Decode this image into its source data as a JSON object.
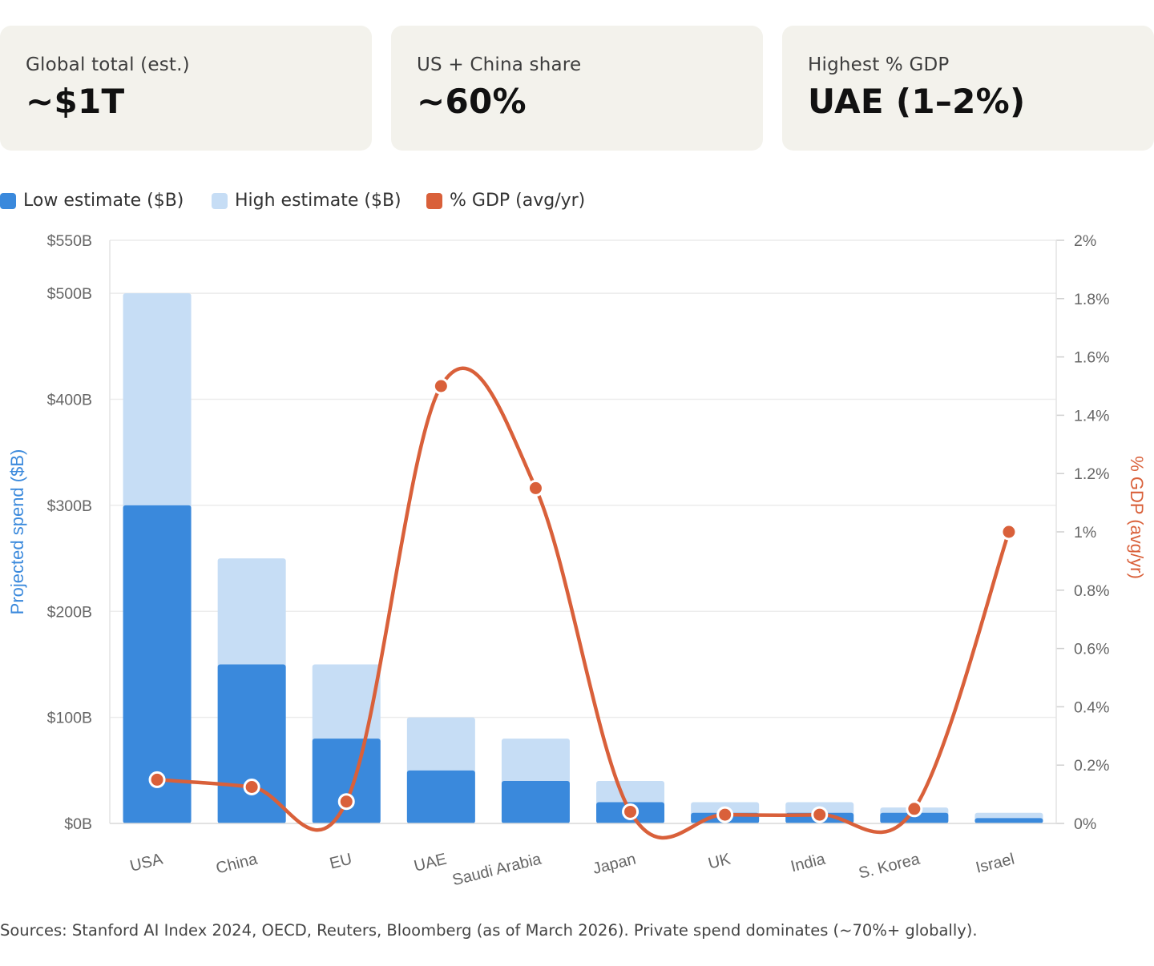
{
  "stats": [
    {
      "label": "Global total (est.)",
      "value": "~$1T"
    },
    {
      "label": "US + China share",
      "value": "~60%"
    },
    {
      "label": "Highest % GDP",
      "value": "UAE (1–2%)"
    }
  ],
  "legend": [
    {
      "label": "Low estimate ($B)",
      "color": "#3a89dc"
    },
    {
      "label": "High estimate ($B)",
      "color": "#c6ddf5"
    },
    {
      "label": "% GDP (avg/yr)",
      "color": "#d9603a"
    }
  ],
  "chart_data": {
    "type": "bar",
    "categories": [
      "USA",
      "China",
      "EU",
      "UAE",
      "Saudi Arabia",
      "Japan",
      "UK",
      "India",
      "S. Korea",
      "Israel"
    ],
    "series": [
      {
        "name": "Low estimate ($B)",
        "type": "bar",
        "axis": "left",
        "color": "#3a89dc",
        "values": [
          300,
          150,
          80,
          50,
          40,
          20,
          10,
          10,
          10,
          5
        ]
      },
      {
        "name": "High estimate ($B)",
        "type": "bar",
        "axis": "left",
        "color": "#c6ddf5",
        "values": [
          500,
          250,
          150,
          100,
          80,
          40,
          20,
          20,
          15,
          10
        ]
      },
      {
        "name": "% GDP (avg/yr)",
        "type": "line",
        "axis": "right",
        "color": "#d9603a",
        "values": [
          0.15,
          0.125,
          0.075,
          1.5,
          1.15,
          0.04,
          0.03,
          0.03,
          0.05,
          1.0
        ]
      }
    ],
    "ylabel": "Projected spend ($B)",
    "y2label": "% GDP (avg/yr)",
    "ylim": [
      0,
      550
    ],
    "y2lim": [
      0,
      2
    ],
    "yticks": [
      0,
      100,
      200,
      300,
      400,
      500,
      550
    ],
    "ytick_labels": [
      "$0B",
      "$100B",
      "$200B",
      "$300B",
      "$400B",
      "$500B",
      "$550B"
    ],
    "y2ticks": [
      0,
      0.2,
      0.4,
      0.6,
      0.8,
      1,
      1.2,
      1.4,
      1.6,
      1.8,
      2
    ],
    "y2tick_labels": [
      "0%",
      "0.2%",
      "0.4%",
      "0.6%",
      "0.8%",
      "1%",
      "1.2%",
      "1.4%",
      "1.6%",
      "1.8%",
      "2%"
    ],
    "grid": true,
    "legend_position": "top-left"
  },
  "footnote": "Sources: Stanford AI Index 2024, OECD, Reuters, Bloomberg (as of March 2026). Private spend dominates (~70%+ globally)."
}
